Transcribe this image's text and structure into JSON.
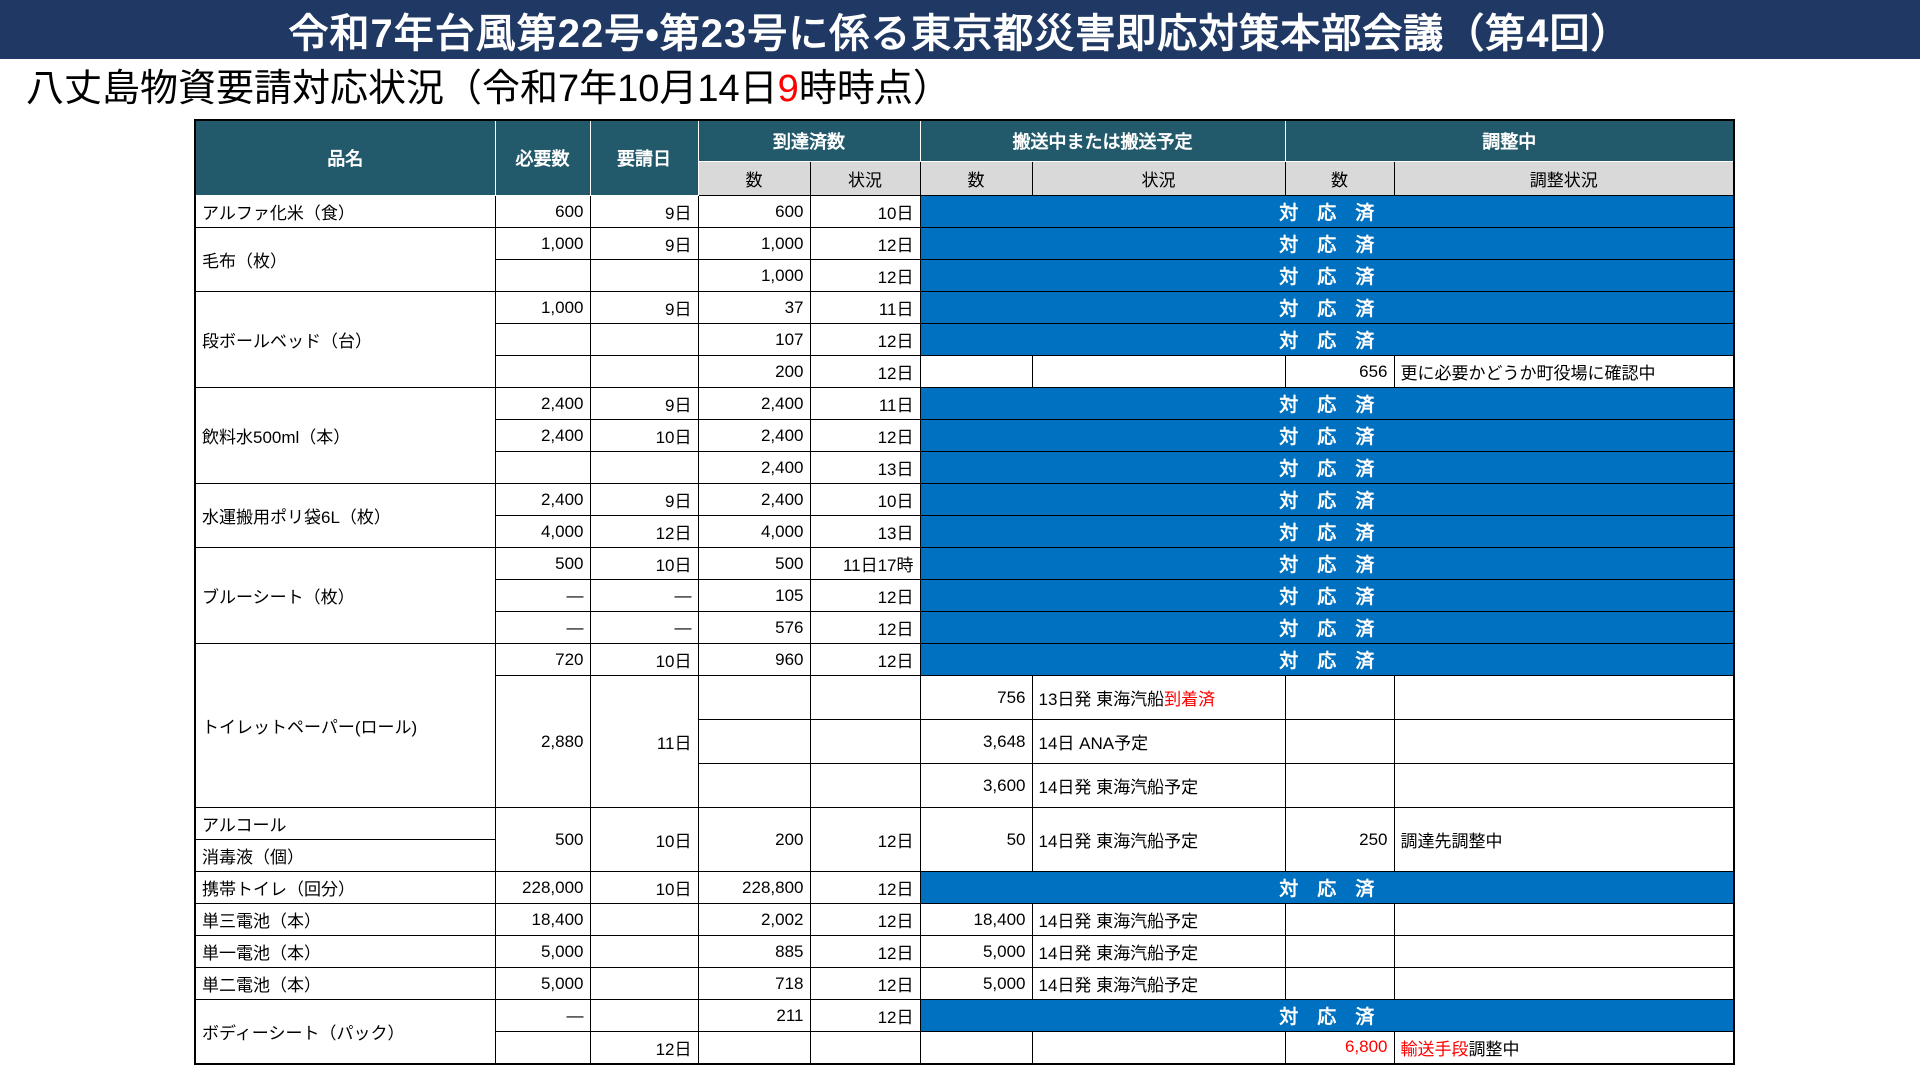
{
  "page": {
    "title": "令和7年台風第22号・第23号に係る東京都災害即応対策本部会議（第4回）",
    "subtitle_prefix": "八丈島物資要請対応状況（令和7年10月14日",
    "subtitle_highlight": "9",
    "subtitle_suffix": "時時点）"
  },
  "colors": {
    "title_bar_bg": "#1F3864",
    "header_bg": "#235A6B",
    "subheader_bg": "#D9D9D9",
    "done_bg": "#0070C0",
    "alert_red": "#FF0000"
  },
  "table": {
    "header_row1": [
      {
        "t": "品名",
        "rowspan": 2,
        "n": "col-header-item-name"
      },
      {
        "t": "必要数",
        "rowspan": 2,
        "n": "col-header-required"
      },
      {
        "t": "要請日",
        "rowspan": 2,
        "n": "col-header-request-date"
      },
      {
        "t": "到達済数",
        "colspan": 2,
        "n": "col-header-arrived"
      },
      {
        "t": "搬送中または搬送予定",
        "colspan": 2,
        "n": "col-header-in-transit"
      },
      {
        "t": "調整中",
        "colspan": 2,
        "n": "col-header-adjusting"
      }
    ],
    "header_row2": [
      {
        "t": "数",
        "n": "col-header-arrived-count"
      },
      {
        "t": "状況",
        "n": "col-header-arrived-status"
      },
      {
        "t": "数",
        "n": "col-header-transit-count"
      },
      {
        "t": "状況",
        "n": "col-header-transit-status"
      },
      {
        "t": "数",
        "n": "col-header-adjust-count"
      },
      {
        "t": "調整状況",
        "n": "col-header-adjust-status"
      }
    ],
    "done_label": "対　応　済",
    "rows": [
      {
        "cells": [
          {
            "t": "アルファ化米（食）",
            "c": "name"
          },
          {
            "t": "600",
            "c": "num"
          },
          {
            "t": "9日",
            "c": "num"
          },
          {
            "t": "600",
            "c": "num"
          },
          {
            "t": "10日",
            "c": "num"
          },
          {
            "t": "対　応　済",
            "c": "taio",
            "colspan": 4
          }
        ]
      },
      {
        "cells": [
          {
            "t": "毛布（枚）",
            "c": "name",
            "rowspan": 2
          },
          {
            "t": "1,000",
            "c": "num"
          },
          {
            "t": "9日",
            "c": "num"
          },
          {
            "t": "1,000",
            "c": "num"
          },
          {
            "t": "12日",
            "c": "num"
          },
          {
            "t": "対　応　済",
            "c": "taio",
            "colspan": 4
          }
        ]
      },
      {
        "cells": [
          {
            "t": "",
            "c": "num"
          },
          {
            "t": "",
            "c": "num"
          },
          {
            "t": "1,000",
            "c": "num"
          },
          {
            "t": "12日",
            "c": "num"
          },
          {
            "t": "対　応　済",
            "c": "taio",
            "colspan": 4
          }
        ]
      },
      {
        "cells": [
          {
            "t": "段ボールベッド（台）",
            "c": "name",
            "rowspan": 3
          },
          {
            "t": "1,000",
            "c": "num"
          },
          {
            "t": "9日",
            "c": "num"
          },
          {
            "t": "37",
            "c": "num"
          },
          {
            "t": "11日",
            "c": "num"
          },
          {
            "t": "対　応　済",
            "c": "taio",
            "colspan": 4
          }
        ]
      },
      {
        "cells": [
          {
            "t": "",
            "c": "num"
          },
          {
            "t": "",
            "c": "num"
          },
          {
            "t": "107",
            "c": "num"
          },
          {
            "t": "12日",
            "c": "num"
          },
          {
            "t": "対　応　済",
            "c": "taio",
            "colspan": 4
          }
        ]
      },
      {
        "cells": [
          {
            "t": "",
            "c": "num"
          },
          {
            "t": "",
            "c": "num"
          },
          {
            "t": "200",
            "c": "num"
          },
          {
            "t": "12日",
            "c": "num"
          },
          {
            "t": "",
            "c": "num"
          },
          {
            "t": "",
            "c": "left"
          },
          {
            "t": "656",
            "c": "num"
          },
          {
            "t": "更に必要かどうか町役場に確認中",
            "c": "left"
          }
        ]
      },
      {
        "cells": [
          {
            "t": "飲料水500ml（本）",
            "c": "name",
            "rowspan": 3
          },
          {
            "t": "2,400",
            "c": "num"
          },
          {
            "t": "9日",
            "c": "num"
          },
          {
            "t": "2,400",
            "c": "num"
          },
          {
            "t": "11日",
            "c": "num"
          },
          {
            "t": "対　応　済",
            "c": "taio",
            "colspan": 4
          }
        ]
      },
      {
        "cells": [
          {
            "t": "2,400",
            "c": "num"
          },
          {
            "t": "10日",
            "c": "num"
          },
          {
            "t": "2,400",
            "c": "num"
          },
          {
            "t": "12日",
            "c": "num"
          },
          {
            "t": "対　応　済",
            "c": "taio",
            "colspan": 4
          }
        ]
      },
      {
        "cells": [
          {
            "t": "",
            "c": "num"
          },
          {
            "t": "",
            "c": "num"
          },
          {
            "t": "2,400",
            "c": "num"
          },
          {
            "t": "13日",
            "c": "num"
          },
          {
            "t": "対　応　済",
            "c": "taio",
            "colspan": 4
          }
        ]
      },
      {
        "cells": [
          {
            "t": "水運搬用ポリ袋6L（枚）",
            "c": "name",
            "rowspan": 2
          },
          {
            "t": "2,400",
            "c": "num"
          },
          {
            "t": "9日",
            "c": "num"
          },
          {
            "t": "2,400",
            "c": "num"
          },
          {
            "t": "10日",
            "c": "num"
          },
          {
            "t": "対　応　済",
            "c": "taio",
            "colspan": 4
          }
        ]
      },
      {
        "cells": [
          {
            "t": "4,000",
            "c": "num"
          },
          {
            "t": "12日",
            "c": "num"
          },
          {
            "t": "4,000",
            "c": "num"
          },
          {
            "t": "13日",
            "c": "num"
          },
          {
            "t": "対　応　済",
            "c": "taio",
            "colspan": 4
          }
        ]
      },
      {
        "cells": [
          {
            "t": "ブルーシート（枚）",
            "c": "name",
            "rowspan": 3
          },
          {
            "t": "500",
            "c": "num"
          },
          {
            "t": "10日",
            "c": "num"
          },
          {
            "t": "500",
            "c": "num"
          },
          {
            "t": "11日17時",
            "c": "num"
          },
          {
            "t": "対　応　済",
            "c": "taio",
            "colspan": 4
          }
        ]
      },
      {
        "cells": [
          {
            "t": "—",
            "c": "num"
          },
          {
            "t": "—",
            "c": "num"
          },
          {
            "t": "105",
            "c": "num"
          },
          {
            "t": "12日",
            "c": "num"
          },
          {
            "t": "対　応　済",
            "c": "taio",
            "colspan": 4
          }
        ]
      },
      {
        "cells": [
          {
            "t": "—",
            "c": "num"
          },
          {
            "t": "—",
            "c": "num"
          },
          {
            "t": "576",
            "c": "num"
          },
          {
            "t": "12日",
            "c": "num"
          },
          {
            "t": "対　応　済",
            "c": "taio",
            "colspan": 4
          }
        ]
      },
      {
        "cells": [
          {
            "t": "トイレットペーパー(ロール)",
            "c": "name",
            "rowspan": 4
          },
          {
            "t": "720",
            "c": "num"
          },
          {
            "t": "10日",
            "c": "num"
          },
          {
            "t": "960",
            "c": "num"
          },
          {
            "t": "12日",
            "c": "num"
          },
          {
            "t": "対　応　済",
            "c": "taio",
            "colspan": 4
          }
        ]
      },
      {
        "cls": "tall",
        "cells": [
          {
            "t": "2,880",
            "c": "num",
            "rowspan": 3
          },
          {
            "t": "11日",
            "c": "num",
            "rowspan": 3
          },
          {
            "t": "",
            "c": "num"
          },
          {
            "t": "",
            "c": "num"
          },
          {
            "t": "756",
            "c": "num"
          },
          {
            "parts": [
              {
                "t": "13日発 東海汽船"
              },
              {
                "t": "到着済",
                "red": true
              }
            ],
            "c": "left"
          },
          {
            "t": "",
            "c": "num"
          },
          {
            "t": "",
            "c": "left"
          }
        ]
      },
      {
        "cls": "tall",
        "cells": [
          {
            "t": "",
            "c": "num dash"
          },
          {
            "t": "",
            "c": "num dash"
          },
          {
            "t": "3,648",
            "c": "num dash"
          },
          {
            "t": "14日 ANA予定",
            "c": "left dash"
          },
          {
            "t": "",
            "c": "num dash"
          },
          {
            "t": "",
            "c": "left dash"
          }
        ]
      },
      {
        "cls": "tall",
        "cells": [
          {
            "t": "",
            "c": "num dash"
          },
          {
            "t": "",
            "c": "num dash"
          },
          {
            "t": "3,600",
            "c": "num dash"
          },
          {
            "t": "14日発 東海汽船予定",
            "c": "left dash"
          },
          {
            "t": "",
            "c": "num dash"
          },
          {
            "t": "",
            "c": "left dash"
          }
        ]
      },
      {
        "cells": [
          {
            "t": "アルコール",
            "c": "name"
          },
          {
            "t": "500",
            "c": "num",
            "rowspan": 2
          },
          {
            "t": "10日",
            "c": "num",
            "rowspan": 2
          },
          {
            "t": "200",
            "c": "num",
            "rowspan": 2
          },
          {
            "t": "12日",
            "c": "num",
            "rowspan": 2
          },
          {
            "t": "50",
            "c": "num",
            "rowspan": 2
          },
          {
            "t": "14日発 東海汽船予定",
            "c": "left",
            "rowspan": 2
          },
          {
            "t": "250",
            "c": "num",
            "rowspan": 2
          },
          {
            "t": "調達先調整中",
            "c": "left",
            "rowspan": 2
          }
        ]
      },
      {
        "cells": [
          {
            "t": "消毒液（個）",
            "c": "name"
          }
        ]
      },
      {
        "cells": [
          {
            "t": "携帯トイレ（回分）",
            "c": "name"
          },
          {
            "t": "228,000",
            "c": "num"
          },
          {
            "t": "10日",
            "c": "num"
          },
          {
            "t": "228,800",
            "c": "num"
          },
          {
            "t": "12日",
            "c": "num"
          },
          {
            "t": "対　応　済",
            "c": "taio",
            "colspan": 4
          }
        ]
      },
      {
        "cells": [
          {
            "t": "単三電池（本）",
            "c": "name"
          },
          {
            "t": "18,400",
            "c": "num"
          },
          {
            "t": "",
            "c": "num"
          },
          {
            "t": "2,002",
            "c": "num"
          },
          {
            "t": "12日",
            "c": "num"
          },
          {
            "t": "18,400",
            "c": "num"
          },
          {
            "t": "14日発 東海汽船予定",
            "c": "left"
          },
          {
            "t": "",
            "c": "num"
          },
          {
            "t": "",
            "c": "left"
          }
        ]
      },
      {
        "cells": [
          {
            "t": "単一電池（本）",
            "c": "name"
          },
          {
            "t": "5,000",
            "c": "num"
          },
          {
            "t": "",
            "c": "num"
          },
          {
            "t": "885",
            "c": "num"
          },
          {
            "t": "12日",
            "c": "num"
          },
          {
            "t": "5,000",
            "c": "num"
          },
          {
            "t": "14日発 東海汽船予定",
            "c": "left"
          },
          {
            "t": "",
            "c": "num"
          },
          {
            "t": "",
            "c": "left"
          }
        ]
      },
      {
        "cells": [
          {
            "t": "単二電池（本）",
            "c": "name"
          },
          {
            "t": "5,000",
            "c": "num"
          },
          {
            "t": "",
            "c": "num"
          },
          {
            "t": "718",
            "c": "num"
          },
          {
            "t": "12日",
            "c": "num"
          },
          {
            "t": "5,000",
            "c": "num"
          },
          {
            "t": "14日発 東海汽船予定",
            "c": "left"
          },
          {
            "t": "",
            "c": "num"
          },
          {
            "t": "",
            "c": "left"
          }
        ]
      },
      {
        "cells": [
          {
            "t": "ボディーシート（パック）",
            "c": "name",
            "rowspan": 2
          },
          {
            "t": "—",
            "c": "num"
          },
          {
            "t": "",
            "c": "num"
          },
          {
            "t": "211",
            "c": "num"
          },
          {
            "t": "12日",
            "c": "num"
          },
          {
            "t": "対　応　済",
            "c": "taio",
            "colspan": 4
          }
        ]
      },
      {
        "cells": [
          {
            "t": "",
            "c": "num"
          },
          {
            "t": "12日",
            "c": "num"
          },
          {
            "t": "",
            "c": "num"
          },
          {
            "t": "",
            "c": "num"
          },
          {
            "t": "",
            "c": "num"
          },
          {
            "t": "",
            "c": "left"
          },
          {
            "parts": [
              {
                "t": "6,800",
                "red": true
              }
            ],
            "c": "num"
          },
          {
            "parts": [
              {
                "t": "輸送手段",
                "red": true
              },
              {
                "t": "調整中"
              }
            ],
            "c": "left"
          }
        ]
      }
    ]
  }
}
